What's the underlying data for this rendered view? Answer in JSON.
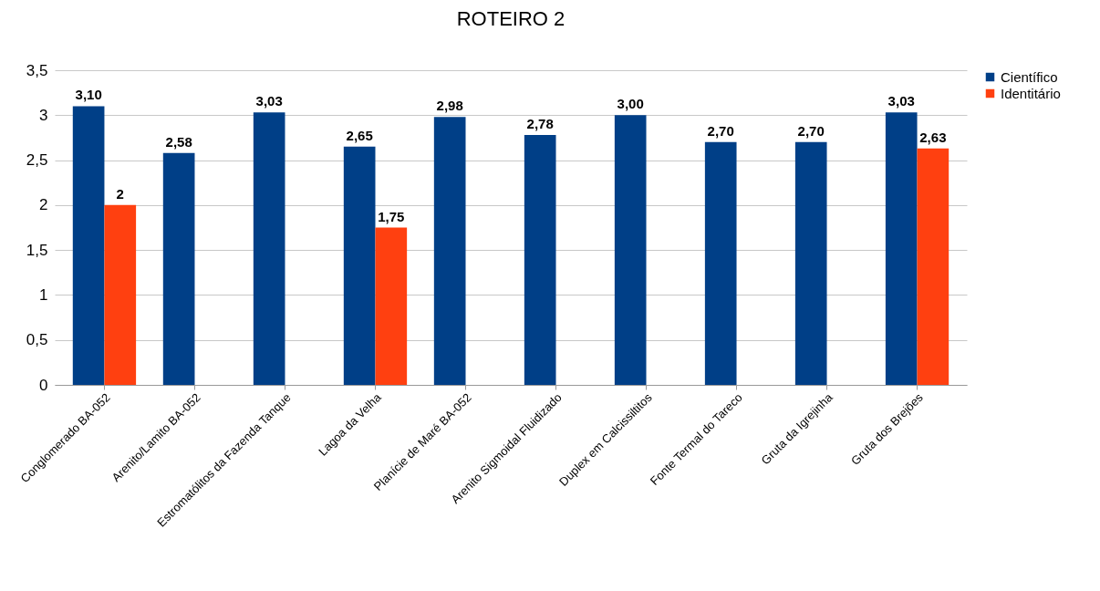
{
  "chart_data": {
    "type": "bar",
    "title": "ROTEIRO 2",
    "categories": [
      "Conglomerado BA-052",
      "Arenito/Lamito BA-052",
      "Estromatólitos da Fazenda Tanque",
      "Lagoa da Velha",
      "Planície de Maré BA-052",
      "Arenito Sigmoidal Fluidizado",
      "Duplex em Calcissiltitos",
      "Fonte Termal do Tareco",
      "Gruta da Igrejinha",
      "Gruta dos Brejões"
    ],
    "series": [
      {
        "name": "Científico",
        "color": "#003f87",
        "values": [
          3.1,
          2.58,
          3.03,
          2.65,
          2.98,
          2.78,
          3.0,
          2.7,
          2.7,
          3.03
        ],
        "value_labels": [
          "3,10",
          "2,58",
          "3,03",
          "2,65",
          "2,98",
          "2,78",
          "3,00",
          "2,70",
          "2,70",
          "3,03"
        ]
      },
      {
        "name": "Identitário",
        "color": "#ff4010",
        "values": [
          2,
          null,
          null,
          1.75,
          null,
          null,
          null,
          null,
          null,
          2.63
        ],
        "value_labels": [
          "2",
          null,
          null,
          "1,75",
          null,
          null,
          null,
          null,
          null,
          "2,63"
        ]
      }
    ],
    "ylim": [
      0,
      3.5
    ],
    "yticks": [
      0,
      {
        "value": 0.5,
        "label": "0,5"
      },
      1,
      {
        "value": 1.5,
        "label": "1,5"
      },
      2,
      {
        "value": 2.5,
        "label": "2,5"
      },
      3,
      {
        "value": 3.5,
        "label": "3,5"
      }
    ],
    "grid": "y",
    "legend": "right"
  }
}
